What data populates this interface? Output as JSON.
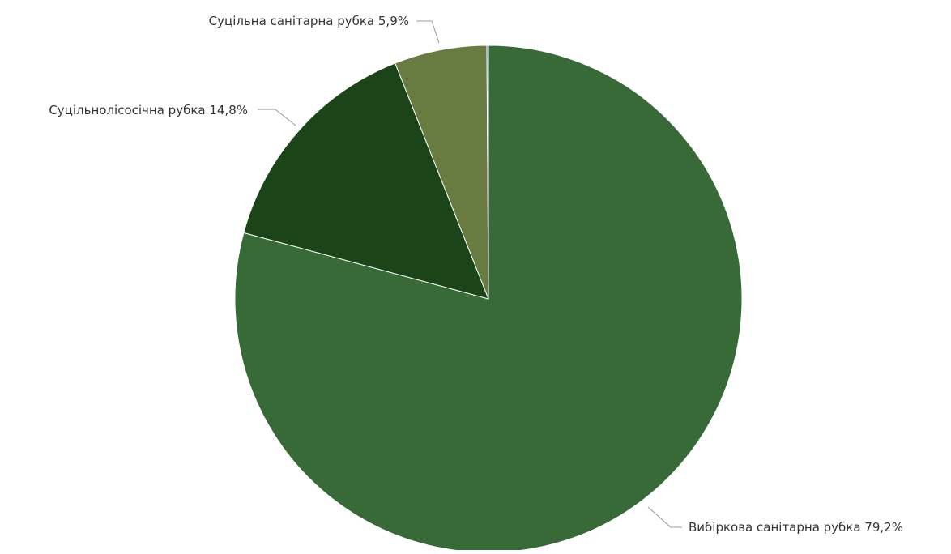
{
  "chart_data": {
    "type": "pie",
    "title": "",
    "slices": [
      {
        "label": "Вибіркова санітарна рубка",
        "value": 79.2,
        "value_label": "79,2%",
        "color": "#386a37"
      },
      {
        "label": "Суцільнолісосічна рубка",
        "value": 14.8,
        "value_label": "14,8%",
        "color": "#1c4419"
      },
      {
        "label": "Суцільна санітарна рубка",
        "value": 5.9,
        "value_label": "5,9%",
        "color": "#687c41"
      },
      {
        "label": "",
        "value": 0.1,
        "value_label": "",
        "color": "#3f6e8f"
      }
    ],
    "start_angle": "12 o'clock",
    "direction": "clockwise",
    "legend": "none"
  }
}
